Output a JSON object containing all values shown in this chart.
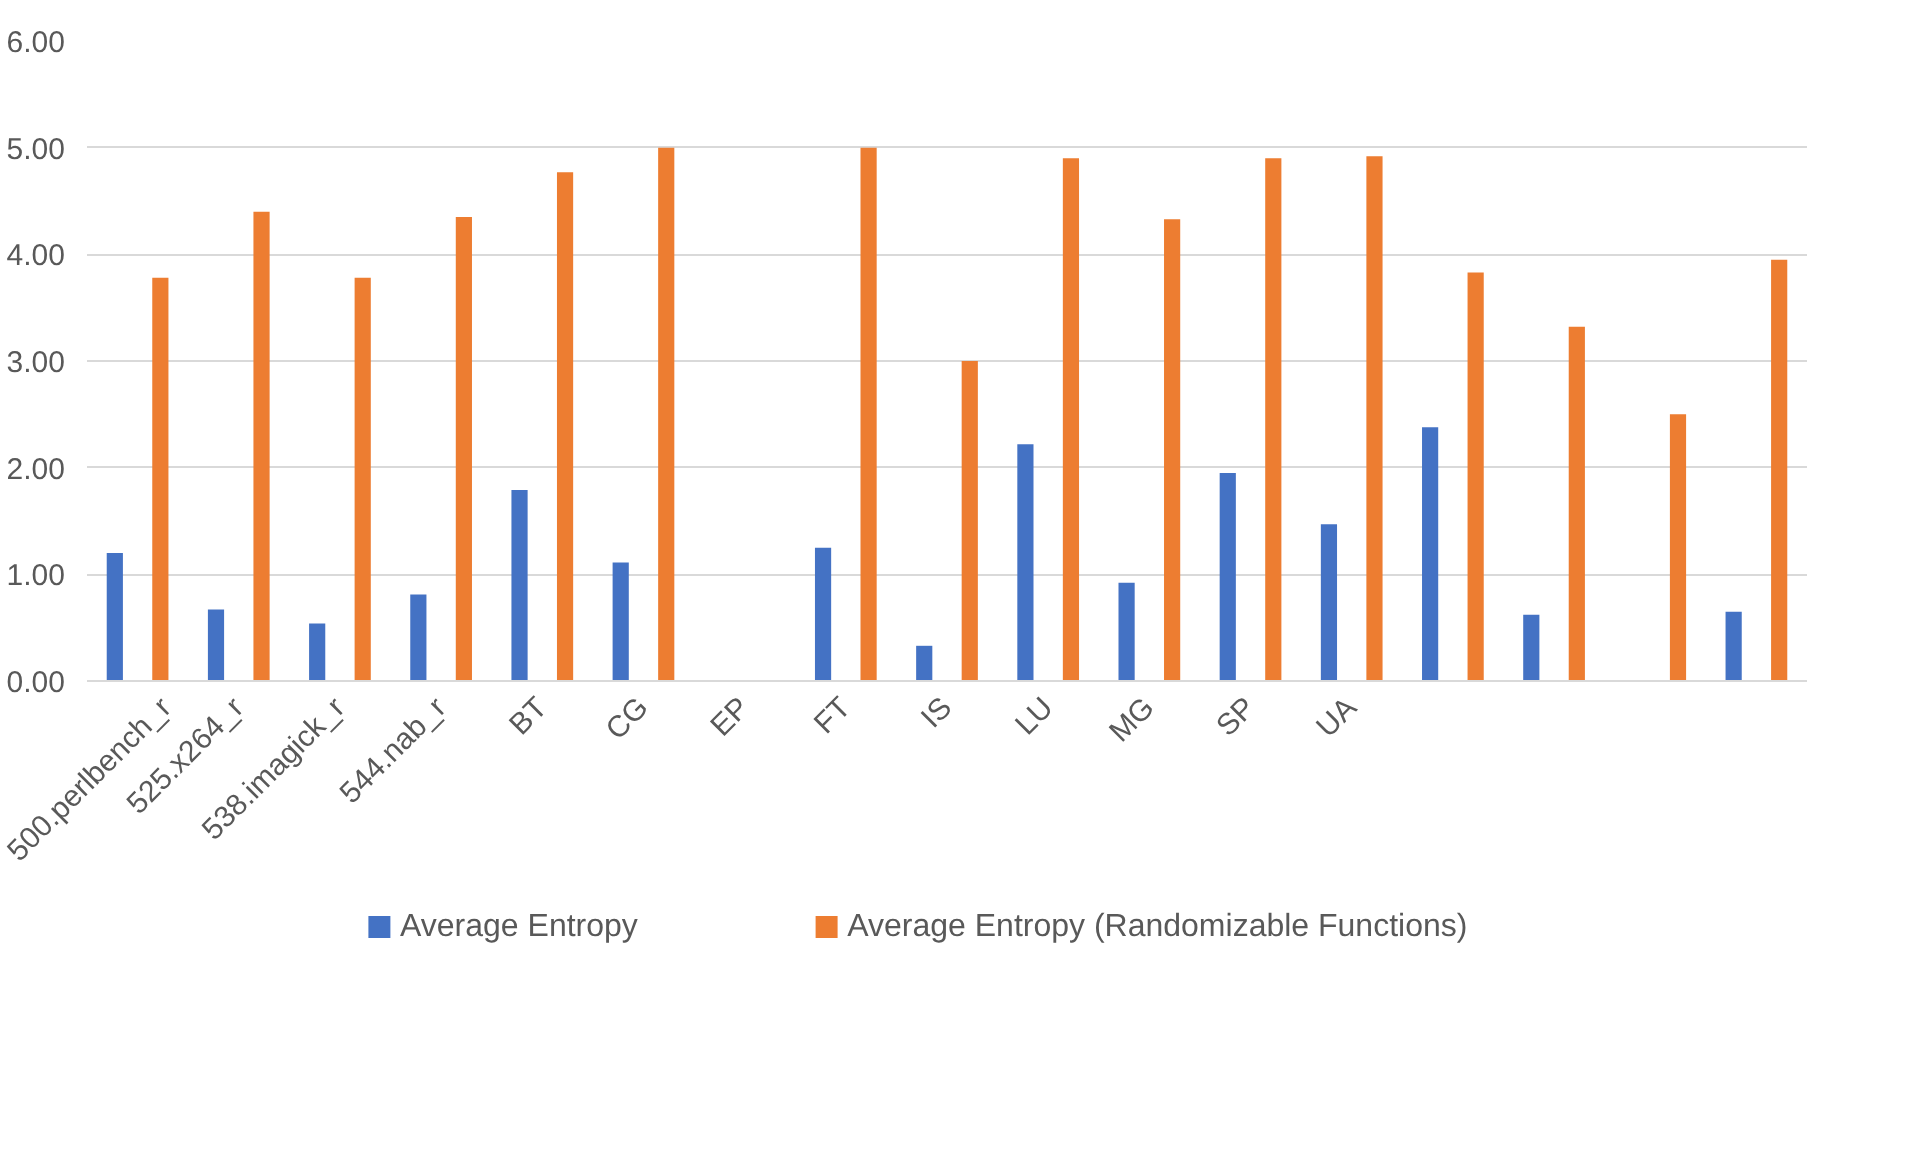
{
  "chart_data": {
    "type": "bar",
    "categories": [
      "500.perlbench_r",
      "525.x264_r",
      "538.imagick_r",
      "544.nab_r",
      "BT",
      "CG",
      "EP",
      "FT",
      "IS",
      "LU",
      "MG",
      "SP",
      "UA",
      null,
      null,
      null,
      null
    ],
    "series": [
      {
        "name": "Average Entropy",
        "color": "#4472c4",
        "values": [
          1.2,
          0.67,
          0.54,
          0.81,
          1.79,
          1.11,
          0,
          1.25,
          0.33,
          2.22,
          0.92,
          1.95,
          1.47,
          2.38,
          0.62,
          0,
          0.65
        ]
      },
      {
        "name": "Average Entropy (Randomizable Functions)",
        "color": "#ed7d31",
        "values": [
          3.78,
          4.4,
          3.78,
          4.35,
          4.77,
          5.0,
          0,
          5.0,
          3.0,
          4.9,
          4.33,
          4.9,
          4.92,
          3.83,
          3.32,
          2.5,
          3.95
        ]
      }
    ],
    "ylim": [
      0,
      6
    ],
    "yticks": [
      {
        "value": 0,
        "label": "0.00"
      },
      {
        "value": 1,
        "label": "1.00"
      },
      {
        "value": 2,
        "label": "2.00"
      },
      {
        "value": 3,
        "label": "3.00"
      },
      {
        "value": 4,
        "label": "4.00"
      },
      {
        "value": 5,
        "label": "5.00"
      },
      {
        "value": 6,
        "label": "6.00"
      }
    ],
    "grid": "y",
    "legend": "bottom"
  }
}
